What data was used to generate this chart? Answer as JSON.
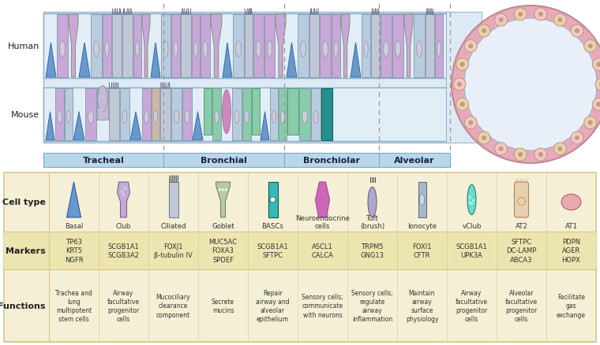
{
  "bg_color": "#ffffff",
  "airway_bg": "#ddeaf5",
  "section_bar_bg": "#b8d8ea",
  "section_bar_border": "#7aaac8",
  "section_labels": [
    "Tracheal",
    "Bronchial",
    "Bronchiolar",
    "Alveolar"
  ],
  "table_bg": "#f5f0d5",
  "table_border": "#d4c98a",
  "markers_bg": "#ede5b0",
  "row_labels": [
    "Cell type",
    "Markers",
    "Functions"
  ],
  "cell_types": [
    "Basal",
    "Club",
    "Ciliated",
    "Goblet",
    "BASCs",
    "Neuroendocrine\ncells",
    "Tuft\n(brush)",
    "Ionocyte",
    "vClub",
    "AT2",
    "AT1"
  ],
  "markers": [
    "TP63\nKRT5\nNGFR",
    "SCGB1A1\nSCGB3A2",
    "FOXJ1\nβ-tubulin IV",
    "MUC5AC\nFOXA3\nSPDEF",
    "SCGB1A1\nSFTPC",
    "ASCL1\nCALCA",
    "TRPM5\nGNG13",
    "FOXI1\nCFTR",
    "SCGB1A1\nUPK3A",
    "SFTPC\nDC-LAMP\nABCA3",
    "PDPN\nAGER\nHOPX"
  ],
  "functions": [
    "Trachea and\nlung\nmultipotent\nstem cells",
    "Airway\nfacultative\nprogenitor\ncells",
    "Mucociliary\nclearance\ncomponent",
    "Secrete\nmucins",
    "Repair\nairway and\nalveolar\nepithelium",
    "Sensory cells;\ncommunicate\nwith neurons",
    "Sensory cells;\nregulate\nairway\ninflammation",
    "Maintain\nairway\nsurface\nphysiology",
    "Airway\nfacultative\nprogenitor\ncells",
    "Alveolar\nfacultative\nprogenitor\ncells",
    "Facilitate\ngas\nexchange"
  ],
  "pink_outer": "#e8aabb",
  "alveolus_bg": "#e8eff8",
  "icon_colors": [
    "#6699cc",
    "#c8a8d8",
    "#c0c8d8",
    "#b8c8a8",
    "#3ab8b8",
    "#cc66bb",
    "#b0a8cc",
    "#a8b8cc",
    "#6ed8cc",
    "#e8d0b0",
    "#e8a8b0"
  ]
}
